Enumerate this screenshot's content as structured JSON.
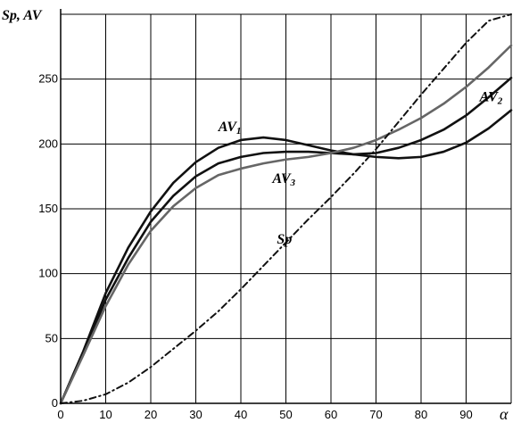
{
  "chart_data": {
    "type": "line",
    "ylabel": "Sp, AV",
    "xlabel": "α",
    "xlim": [
      0,
      100
    ],
    "ylim": [
      0,
      300
    ],
    "grid": true,
    "xticks": [
      0,
      10,
      20,
      30,
      40,
      50,
      60,
      70,
      80,
      90
    ],
    "yticks": [
      0,
      50,
      100,
      150,
      200,
      250
    ],
    "series": [
      {
        "name": "AV1",
        "color": "#111111",
        "style": "solid",
        "x": [
          0,
          5,
          10,
          15,
          20,
          25,
          30,
          35,
          40,
          45,
          50,
          55,
          60,
          65,
          70,
          75,
          80,
          85,
          90,
          95,
          100
        ],
        "y": [
          0,
          40,
          85,
          120,
          148,
          170,
          186,
          197,
          203,
          205,
          203,
          199,
          195,
          192,
          190,
          189,
          190,
          194,
          201,
          212,
          226
        ]
      },
      {
        "name": "AV2",
        "color": "#111111",
        "style": "solid",
        "x": [
          0,
          5,
          10,
          15,
          20,
          25,
          30,
          35,
          40,
          45,
          50,
          55,
          60,
          65,
          70,
          75,
          80,
          85,
          90,
          95,
          100
        ],
        "y": [
          0,
          38,
          80,
          112,
          140,
          160,
          175,
          185,
          190,
          193,
          194,
          194,
          193,
          192,
          193,
          197,
          203,
          211,
          222,
          236,
          251
        ]
      },
      {
        "name": "AV3",
        "color": "#666666",
        "style": "solid",
        "x": [
          0,
          5,
          10,
          15,
          20,
          25,
          30,
          35,
          40,
          45,
          50,
          55,
          60,
          65,
          70,
          75,
          80,
          85,
          90,
          95,
          100
        ],
        "y": [
          0,
          37,
          75,
          107,
          133,
          152,
          166,
          176,
          181,
          185,
          188,
          190,
          193,
          197,
          203,
          211,
          220,
          231,
          244,
          259,
          276
        ]
      },
      {
        "name": "Sp",
        "color": "#111111",
        "style": "dash-dot",
        "x": [
          0,
          5,
          10,
          15,
          20,
          25,
          30,
          35,
          40,
          45,
          50,
          55,
          60,
          65,
          70,
          75,
          80,
          85,
          90,
          95,
          100
        ],
        "y": [
          0,
          2,
          7,
          16,
          28,
          42,
          56,
          71,
          88,
          106,
          124,
          142,
          159,
          177,
          196,
          217,
          238,
          258,
          278,
          295,
          300
        ]
      }
    ],
    "annotations": [
      {
        "series": "AV1",
        "main": "AV",
        "sub": "1",
        "x": 35,
        "y": 210
      },
      {
        "series": "AV2",
        "main": "AV",
        "sub": "2",
        "x": 93,
        "y": 233
      },
      {
        "series": "AV3",
        "main": "AV",
        "sub": "3",
        "x": 47,
        "y": 170
      },
      {
        "series": "Sp",
        "main": "Sp",
        "sub": "",
        "x": 48,
        "y": 123
      }
    ]
  }
}
